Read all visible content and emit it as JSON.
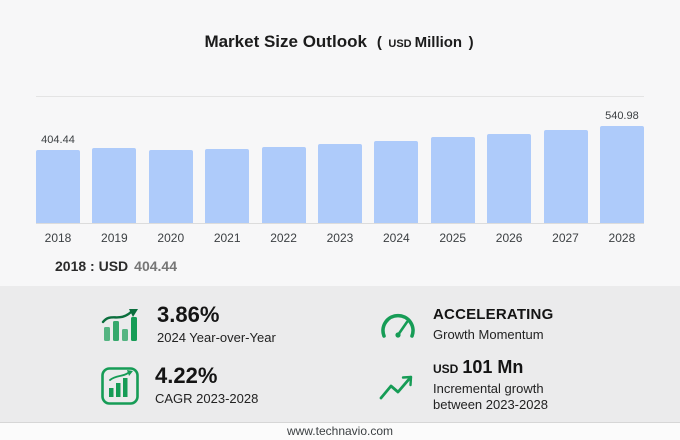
{
  "title": {
    "main": "Market Size Outlook",
    "paren_open": "(",
    "unit_currency": "USD",
    "unit_scale": "Million",
    "paren_close": ")"
  },
  "chart_data": {
    "type": "bar",
    "title": "Market Size Outlook (USD Million)",
    "unit": "USD Million",
    "categories": [
      "2018",
      "2019",
      "2020",
      "2021",
      "2022",
      "2023",
      "2024",
      "2025",
      "2026",
      "2027",
      "2028"
    ],
    "values": [
      404.44,
      415,
      407,
      413.5,
      425,
      439.98,
      456.96,
      476.6,
      497.1,
      518.4,
      540.98
    ],
    "value_labels": [
      {
        "index": 0,
        "text": "404.44"
      },
      {
        "index": 10,
        "text": "540.98"
      }
    ],
    "xlabel": "",
    "ylabel": "",
    "ylim": [
      0,
      560
    ],
    "legend": "none",
    "grid": "top-gridline-only",
    "bar_color": "#aecbfa"
  },
  "subtitle": {
    "prefix": "2018 : USD",
    "value": "404.44"
  },
  "stats": [
    {
      "icon": "bar-growth-icon",
      "value": "3.86%",
      "label": "2024 Year-over-Year"
    },
    {
      "icon": "gauge-icon",
      "value": "ACCELERATING",
      "label": "Growth Momentum"
    },
    {
      "icon": "cagr-chart-icon",
      "value": "4.22%",
      "label": "CAGR 2023-2028"
    },
    {
      "icon": "growth-arrow-icon",
      "value_prefix": "USD",
      "value": "101 Mn",
      "label": "Incremental growth between 2023-2028"
    }
  ],
  "footer": {
    "url": "www.technavio.com"
  },
  "colors": {
    "bar": "#aecbfa",
    "accent_green": "#169c56",
    "panel_bg": "#ebebec",
    "page_bg": "#f7f7f8"
  }
}
